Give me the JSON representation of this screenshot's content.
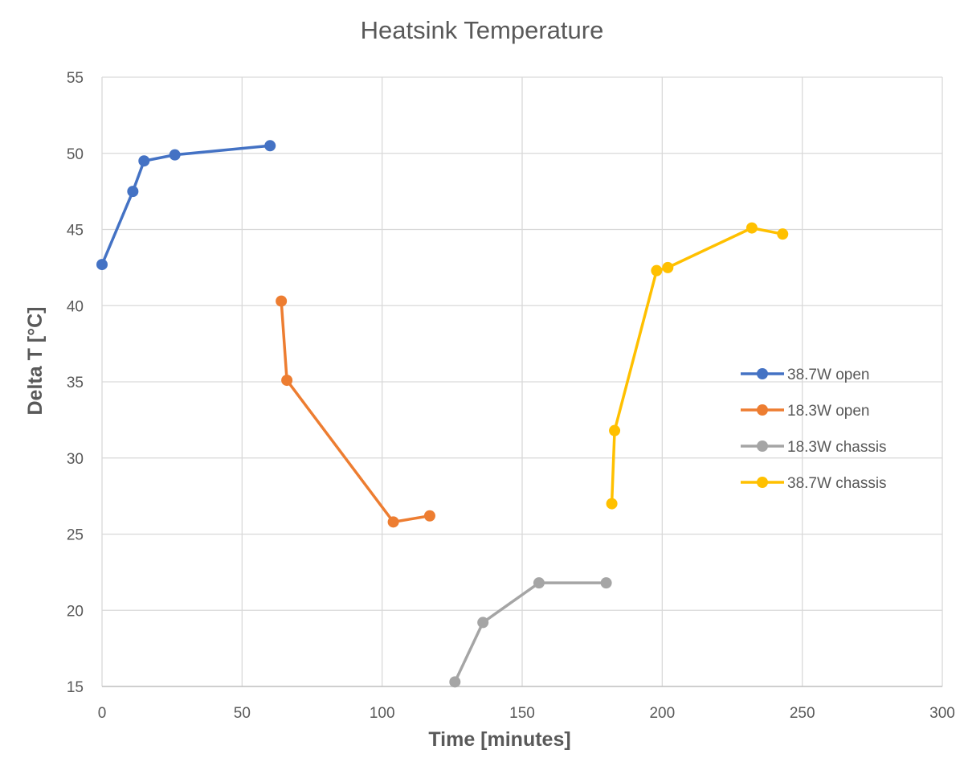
{
  "chart_data": {
    "type": "line",
    "title": "Heatsink Temperature",
    "xlabel": "Time [minutes]",
    "ylabel": "Delta T [°C]",
    "xlim": [
      0,
      300
    ],
    "ylim": [
      15,
      55
    ],
    "xticks": [
      "0",
      "50",
      "100",
      "150",
      "200",
      "250",
      "300"
    ],
    "yticks": [
      "15",
      "20",
      "25",
      "30",
      "35",
      "40",
      "45",
      "50",
      "55"
    ],
    "grid": true,
    "legend_position": "right",
    "series": [
      {
        "name": "38.7W open",
        "color": "#4472C4",
        "points": [
          [
            0,
            42.7
          ],
          [
            11,
            47.5
          ],
          [
            15,
            49.5
          ],
          [
            26,
            49.9
          ],
          [
            60,
            50.5
          ]
        ]
      },
      {
        "name": "18.3W open",
        "color": "#ED7D31",
        "points": [
          [
            64,
            40.3
          ],
          [
            66,
            35.1
          ],
          [
            104,
            25.8
          ],
          [
            117,
            26.2
          ]
        ]
      },
      {
        "name": "18.3W chassis",
        "color": "#A5A5A5",
        "points": [
          [
            126,
            15.3
          ],
          [
            136,
            19.2
          ],
          [
            156,
            21.8
          ],
          [
            180,
            21.8
          ]
        ]
      },
      {
        "name": "38.7W chassis",
        "color": "#FFC000",
        "points": [
          [
            182,
            27.0
          ],
          [
            183,
            31.8
          ],
          [
            198,
            42.3
          ],
          [
            202,
            42.5
          ],
          [
            232,
            45.1
          ],
          [
            243,
            44.7
          ]
        ]
      }
    ]
  }
}
